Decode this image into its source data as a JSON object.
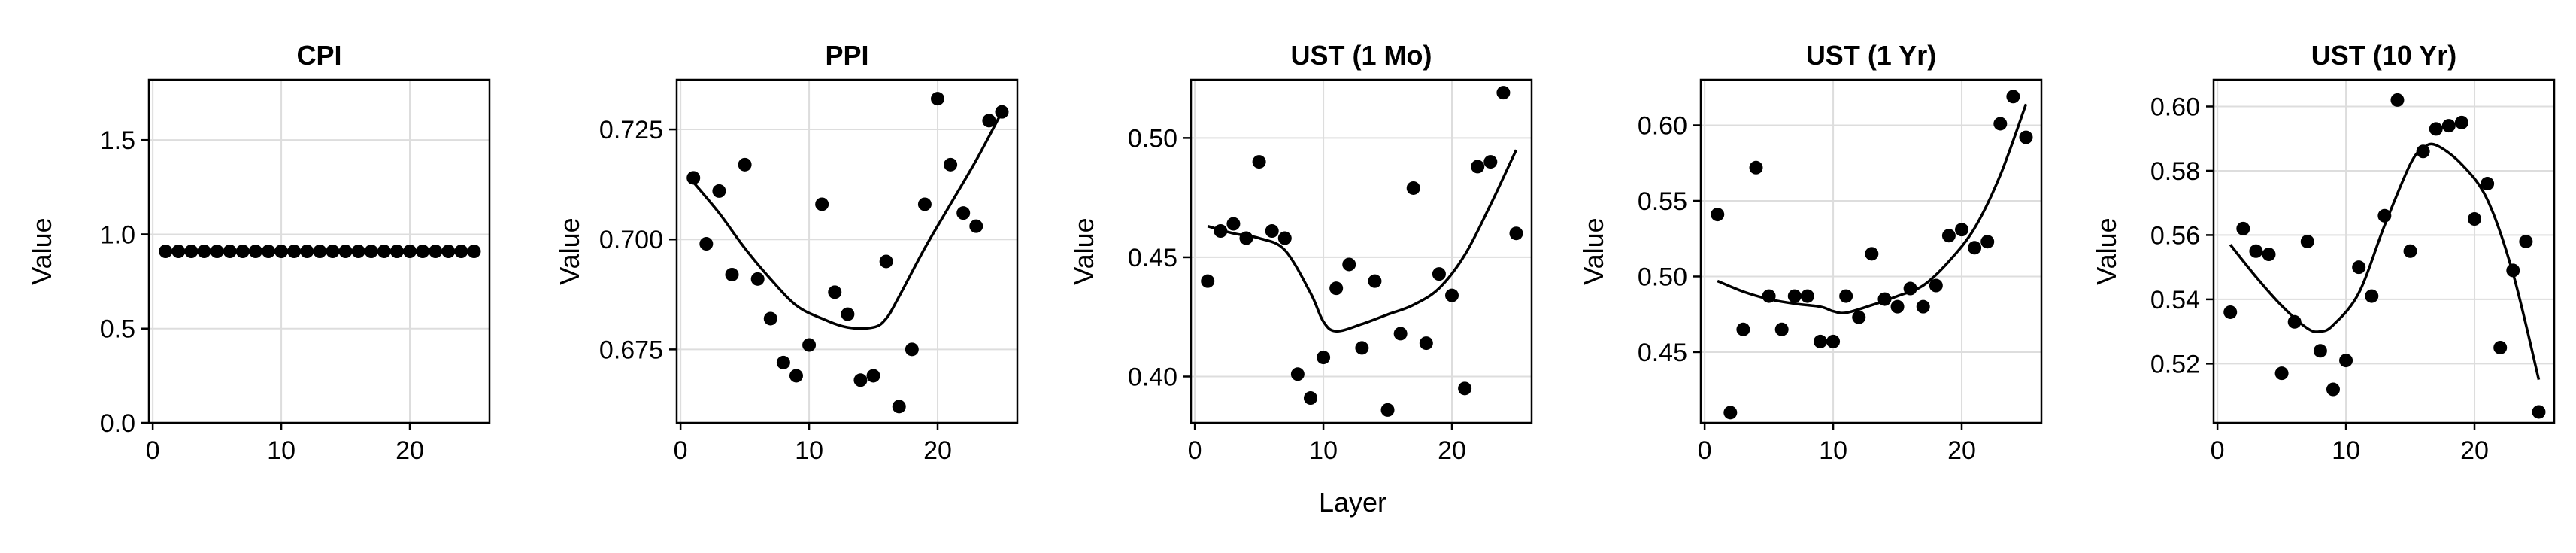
{
  "figure": {
    "xlabel": "Layer"
  },
  "chart_data": [
    {
      "type": "scatter",
      "title": "CPI",
      "ylabel": "Value",
      "xlabel": "",
      "xlim": [
        -0.3,
        26.2
      ],
      "ylim": [
        0.0,
        1.82
      ],
      "xticks": [
        0,
        10,
        20
      ],
      "yticks": [
        0.0,
        0.5,
        1.0,
        1.5
      ],
      "ytick_labels": [
        "0.0",
        "0.5",
        "1.0",
        "1.5"
      ],
      "grid": true,
      "x": [
        1,
        2,
        3,
        4,
        5,
        6,
        7,
        8,
        9,
        10,
        11,
        12,
        13,
        14,
        15,
        16,
        17,
        18,
        19,
        20,
        21,
        22,
        23,
        24,
        25
      ],
      "y": [
        0.91,
        0.91,
        0.91,
        0.91,
        0.91,
        0.91,
        0.91,
        0.91,
        0.91,
        0.91,
        0.91,
        0.91,
        0.91,
        0.91,
        0.91,
        0.91,
        0.91,
        0.91,
        0.91,
        0.91,
        0.91,
        0.91,
        0.91,
        0.91,
        0.91
      ],
      "fit": [
        [
          1,
          0.91
        ],
        [
          25,
          0.91
        ]
      ]
    },
    {
      "type": "scatter",
      "title": "PPI",
      "ylabel": "Value",
      "xlabel": "",
      "xlim": [
        -0.3,
        26.2
      ],
      "ylim": [
        0.6583,
        0.7363
      ],
      "xticks": [
        0,
        10,
        20
      ],
      "yticks": [
        0.675,
        0.7,
        0.725
      ],
      "ytick_labels": [
        "0.675",
        "0.700",
        "0.725"
      ],
      "grid": true,
      "x": [
        1,
        2,
        3,
        4,
        5,
        6,
        7,
        8,
        9,
        10,
        11,
        12,
        13,
        14,
        15,
        16,
        17,
        18,
        19,
        20,
        21,
        22,
        23,
        24,
        25
      ],
      "y": [
        0.714,
        0.699,
        0.711,
        0.692,
        0.717,
        0.691,
        0.682,
        0.672,
        0.669,
        0.676,
        0.708,
        0.688,
        0.683,
        0.668,
        0.669,
        0.695,
        0.662,
        0.675,
        0.708,
        0.732,
        0.717,
        0.706,
        0.703,
        0.727,
        0.729
      ],
      "fit": [
        [
          1,
          0.713
        ],
        [
          3,
          0.706
        ],
        [
          5,
          0.698
        ],
        [
          7,
          0.691
        ],
        [
          9,
          0.685
        ],
        [
          11,
          0.682
        ],
        [
          13,
          0.68
        ],
        [
          15,
          0.68
        ],
        [
          16,
          0.682
        ],
        [
          17,
          0.687
        ],
        [
          19,
          0.698
        ],
        [
          21,
          0.708
        ],
        [
          23,
          0.718
        ],
        [
          25,
          0.729
        ]
      ]
    },
    {
      "type": "scatter",
      "title": "UST (1 Mo)",
      "ylabel": "Value",
      "xlabel": "",
      "xlim": [
        -0.3,
        26.2
      ],
      "ylim": [
        0.3806,
        0.5244
      ],
      "xticks": [
        0,
        10,
        20
      ],
      "yticks": [
        0.4,
        0.45,
        0.5
      ],
      "ytick_labels": [
        "0.40",
        "0.45",
        "0.50"
      ],
      "grid": true,
      "x": [
        1,
        2,
        3,
        4,
        5,
        6,
        7,
        8,
        9,
        10,
        11,
        12,
        13,
        14,
        15,
        16,
        17,
        18,
        19,
        20,
        21,
        22,
        23,
        24,
        25
      ],
      "y": [
        0.44,
        0.461,
        0.464,
        0.458,
        0.49,
        0.461,
        0.458,
        0.401,
        0.391,
        0.408,
        0.437,
        0.447,
        0.412,
        0.44,
        0.386,
        0.418,
        0.479,
        0.414,
        0.443,
        0.434,
        0.395,
        0.488,
        0.49,
        0.519,
        0.46
      ],
      "fit": [
        [
          1,
          0.463
        ],
        [
          3,
          0.46
        ],
        [
          5,
          0.458
        ],
        [
          7,
          0.453
        ],
        [
          9,
          0.435
        ],
        [
          10,
          0.423
        ],
        [
          11,
          0.419
        ],
        [
          13,
          0.422
        ],
        [
          15,
          0.426
        ],
        [
          17,
          0.43
        ],
        [
          19,
          0.437
        ],
        [
          21,
          0.451
        ],
        [
          23,
          0.472
        ],
        [
          25,
          0.495
        ]
      ]
    },
    {
      "type": "scatter",
      "title": "UST (1 Yr)",
      "ylabel": "Value",
      "xlabel": "",
      "xlim": [
        -0.3,
        26.2
      ],
      "ylim": [
        0.4032,
        0.6301
      ],
      "xticks": [
        0,
        10,
        20
      ],
      "yticks": [
        0.45,
        0.5,
        0.55,
        0.6
      ],
      "ytick_labels": [
        "0.45",
        "0.50",
        "0.55",
        "0.60"
      ],
      "grid": true,
      "x": [
        1,
        2,
        3,
        4,
        5,
        6,
        7,
        8,
        9,
        10,
        11,
        12,
        13,
        14,
        15,
        16,
        17,
        18,
        19,
        20,
        21,
        22,
        23,
        24,
        25
      ],
      "y": [
        0.541,
        0.41,
        0.465,
        0.572,
        0.487,
        0.465,
        0.487,
        0.487,
        0.457,
        0.457,
        0.487,
        0.473,
        0.515,
        0.485,
        0.48,
        0.492,
        0.48,
        0.494,
        0.527,
        0.531,
        0.519,
        0.523,
        0.601,
        0.619,
        0.592
      ],
      "fit": [
        [
          1,
          0.497
        ],
        [
          3,
          0.49
        ],
        [
          5,
          0.485
        ],
        [
          7,
          0.482
        ],
        [
          9,
          0.48
        ],
        [
          10,
          0.477
        ],
        [
          11,
          0.476
        ],
        [
          13,
          0.481
        ],
        [
          15,
          0.487
        ],
        [
          17,
          0.494
        ],
        [
          19,
          0.51
        ],
        [
          21,
          0.532
        ],
        [
          23,
          0.567
        ],
        [
          25,
          0.614
        ]
      ]
    },
    {
      "type": "scatter",
      "title": "UST (10 Yr)",
      "ylabel": "Value",
      "xlabel": "",
      "xlim": [
        -0.3,
        26.2
      ],
      "ylim": [
        0.5016,
        0.6083
      ],
      "xticks": [
        0,
        10,
        20
      ],
      "yticks": [
        0.52,
        0.54,
        0.56,
        0.58,
        0.6
      ],
      "ytick_labels": [
        "0.52",
        "0.54",
        "0.56",
        "0.58",
        "0.60"
      ],
      "grid": true,
      "x": [
        1,
        2,
        3,
        4,
        5,
        6,
        7,
        8,
        9,
        10,
        11,
        12,
        13,
        14,
        15,
        16,
        17,
        18,
        19,
        20,
        21,
        22,
        23,
        24,
        25
      ],
      "y": [
        0.536,
        0.562,
        0.555,
        0.554,
        0.517,
        0.533,
        0.558,
        0.524,
        0.512,
        0.521,
        0.55,
        0.541,
        0.566,
        0.602,
        0.555,
        0.586,
        0.593,
        0.594,
        0.595,
        0.565,
        0.576,
        0.525,
        0.549,
        0.558,
        0.505
      ],
      "fit": [
        [
          1,
          0.557
        ],
        [
          3,
          0.547
        ],
        [
          5,
          0.538
        ],
        [
          7,
          0.531
        ],
        [
          8,
          0.53
        ],
        [
          9,
          0.532
        ],
        [
          11,
          0.542
        ],
        [
          13,
          0.563
        ],
        [
          15,
          0.582
        ],
        [
          16,
          0.587
        ],
        [
          17,
          0.588
        ],
        [
          19,
          0.582
        ],
        [
          21,
          0.571
        ],
        [
          23,
          0.548
        ],
        [
          25,
          0.515
        ]
      ]
    }
  ]
}
